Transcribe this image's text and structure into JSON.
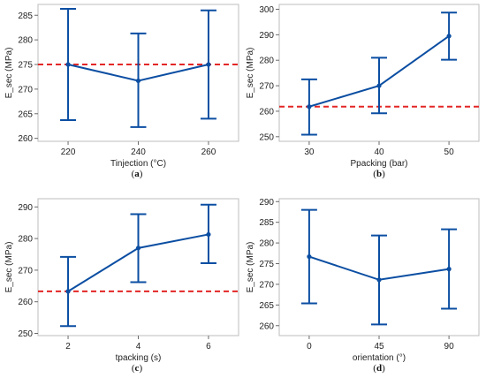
{
  "colors": {
    "series": "#0b4ea2",
    "reference": "#e32626",
    "frame": "#bdbdbd",
    "tick": "#6b6b6b",
    "text": "#222222"
  },
  "chart_data": [
    {
      "type": "line",
      "panel": "a",
      "caption_open": "(",
      "caption_letter": "a",
      "caption_close": ")",
      "xlabel": "Tinjection (°C)",
      "ylabel": "E_sec (MPa)",
      "categories": [
        "220",
        "240",
        "260"
      ],
      "series": [
        {
          "values": [
            275.0,
            271.7,
            275.0
          ],
          "error_low": [
            263.7,
            262.3,
            264.0
          ],
          "error_high": [
            286.3,
            281.3,
            286.0
          ]
        }
      ],
      "reference_line": 275.0,
      "reference_style": "dashed",
      "yticks": [
        260,
        265,
        270,
        275,
        280,
        285
      ],
      "ylim": [
        259.4,
        287.2
      ],
      "grid": false
    },
    {
      "type": "line",
      "panel": "b",
      "caption_open": "(",
      "caption_letter": "b",
      "caption_close": ")",
      "xlabel": "Ppacking (bar)",
      "ylabel": "E_sec (MPa)",
      "categories": [
        "30",
        "40",
        "50"
      ],
      "series": [
        {
          "values": [
            261.8,
            270.0,
            289.5
          ],
          "error_low": [
            250.8,
            259.2,
            280.2
          ],
          "error_high": [
            272.5,
            281.0,
            298.7
          ]
        }
      ],
      "reference_line": 261.8,
      "reference_style": "dashed",
      "yticks": [
        250,
        260,
        270,
        280,
        290,
        300
      ],
      "ylim": [
        248.2,
        301.9
      ],
      "grid": false
    },
    {
      "type": "line",
      "panel": "c",
      "caption_open": "(",
      "caption_letter": "c",
      "caption_close": ")",
      "xlabel": "tpacking (s)",
      "ylabel": "E_sec (MPa)",
      "categories": [
        "2",
        "4",
        "6"
      ],
      "series": [
        {
          "values": [
            263.3,
            277.0,
            281.3
          ],
          "error_low": [
            252.3,
            266.2,
            272.2
          ],
          "error_high": [
            274.2,
            287.7,
            290.7
          ]
        }
      ],
      "reference_line": 263.3,
      "reference_style": "dashed",
      "yticks": [
        250,
        260,
        270,
        280,
        290
      ],
      "ylim": [
        249.3,
        292.6
      ],
      "grid": false
    },
    {
      "type": "line",
      "panel": "d",
      "caption_open": "(",
      "caption_letter": "d",
      "caption_close": ")",
      "xlabel": "orientation (°)",
      "ylabel": "E_sec (MPa)",
      "categories": [
        "0",
        "45",
        "90"
      ],
      "series": [
        {
          "values": [
            276.7,
            271.1,
            273.7
          ],
          "error_low": [
            265.4,
            260.3,
            264.1
          ],
          "error_high": [
            288.0,
            281.8,
            283.3
          ]
        }
      ],
      "reference_line": null,
      "yticks": [
        260,
        265,
        270,
        275,
        280,
        285,
        290
      ],
      "ylim": [
        257.6,
        290.7
      ],
      "grid": false
    }
  ]
}
